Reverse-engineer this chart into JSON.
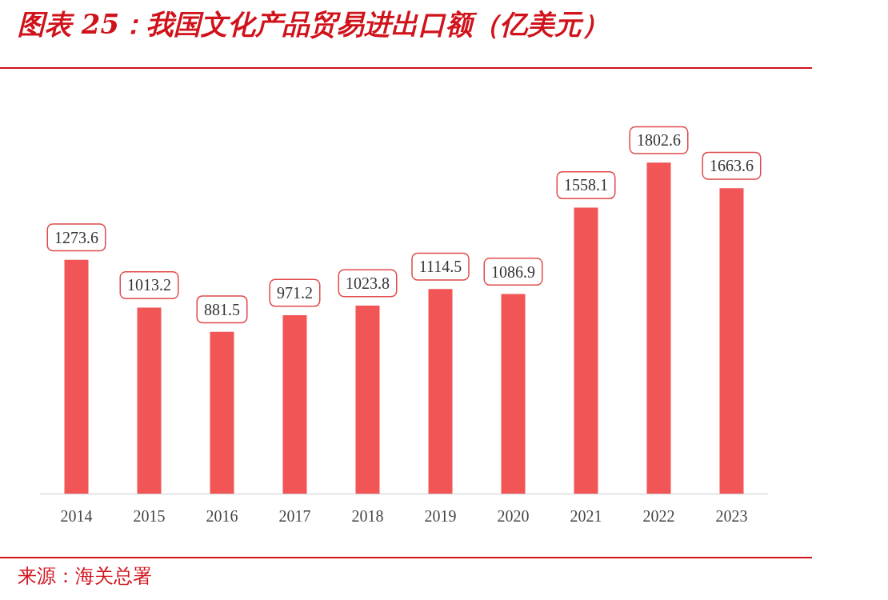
{
  "chart_data": {
    "type": "bar",
    "title": "图表 25：我国文化产品贸易进出口额（亿美元）",
    "categories": [
      "2014",
      "2015",
      "2016",
      "2017",
      "2018",
      "2019",
      "2020",
      "2021",
      "2022",
      "2023"
    ],
    "values": [
      1273.6,
      1013.2,
      881.5,
      971.2,
      1023.8,
      1114.5,
      1086.9,
      1558.1,
      1802.6,
      1663.6
    ],
    "color": "#f25555",
    "data_labels": true,
    "annotations": [
      "来源：海关总署"
    ]
  }
}
